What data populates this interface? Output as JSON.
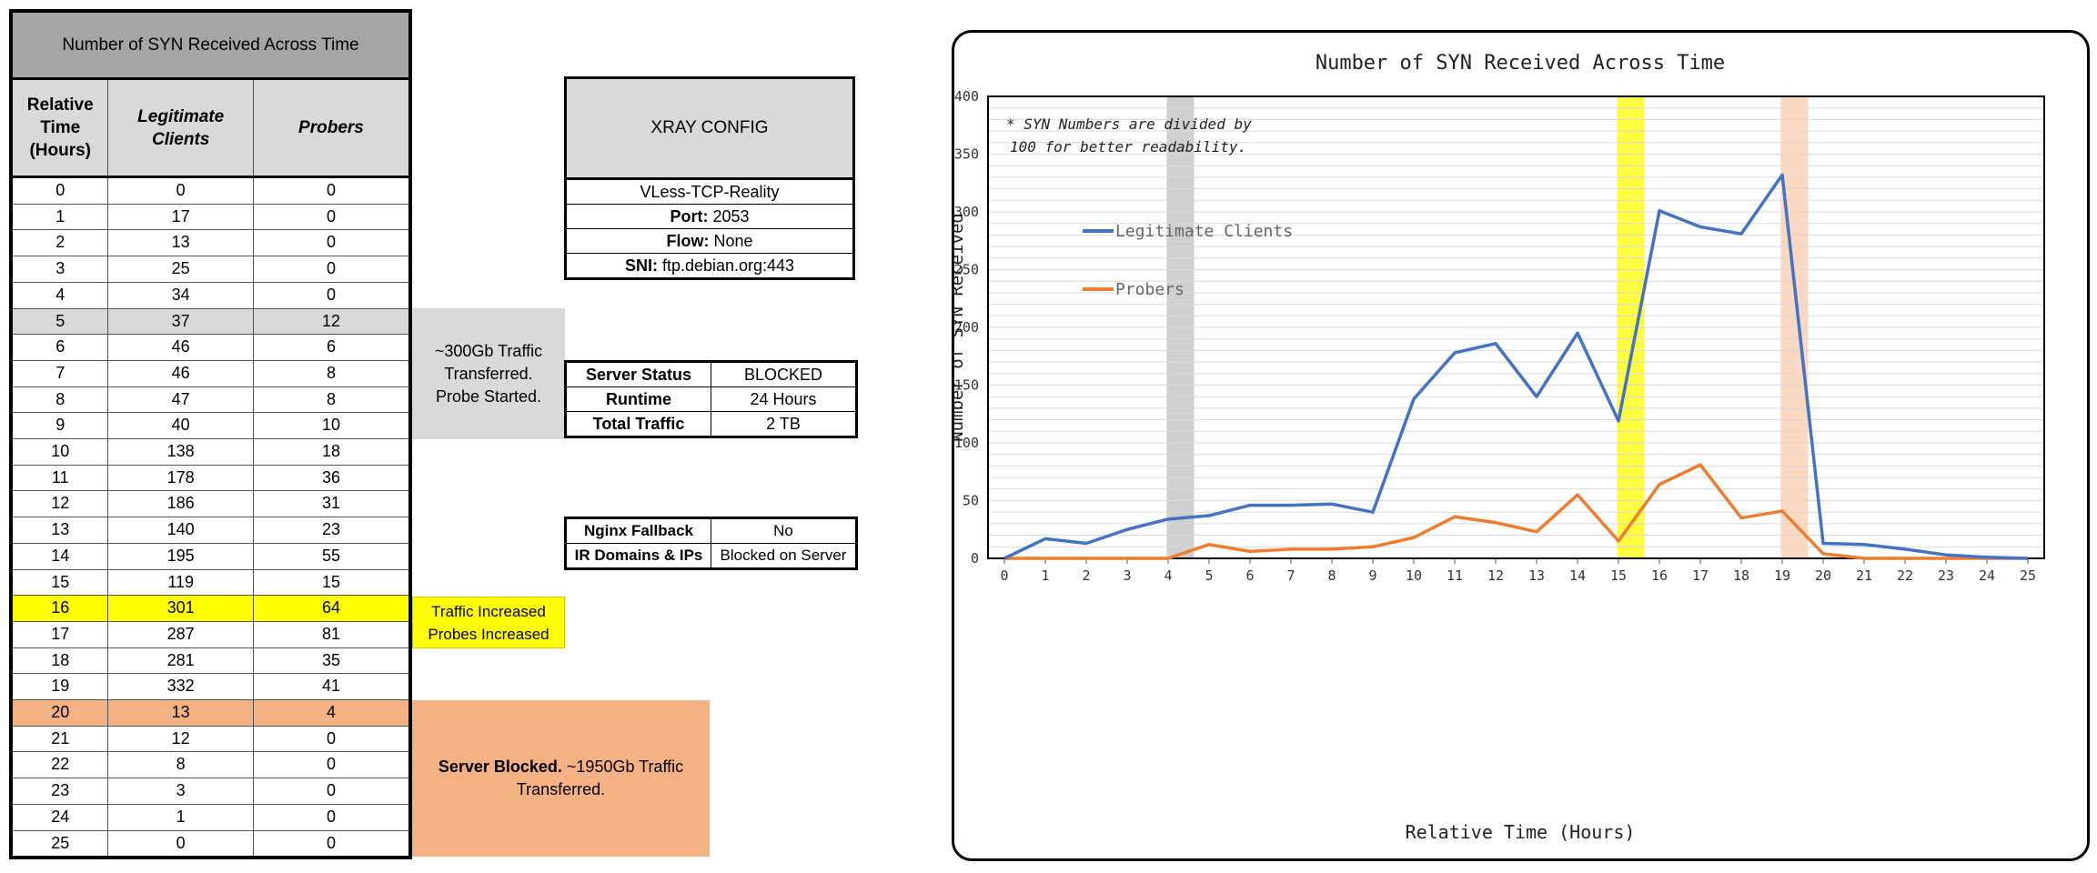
{
  "table": {
    "title": "Number of SYN Received Across Time",
    "headers": [
      "Relative Time (Hours)",
      "Legitimate Clients",
      "Probers"
    ],
    "rows": [
      [
        "0",
        "0",
        "0"
      ],
      [
        "1",
        "17",
        "0"
      ],
      [
        "2",
        "13",
        "0"
      ],
      [
        "3",
        "25",
        "0"
      ],
      [
        "4",
        "34",
        "0"
      ],
      [
        "5",
        "37",
        "12"
      ],
      [
        "6",
        "46",
        "6"
      ],
      [
        "7",
        "46",
        "8"
      ],
      [
        "8",
        "47",
        "8"
      ],
      [
        "9",
        "40",
        "10"
      ],
      [
        "10",
        "138",
        "18"
      ],
      [
        "11",
        "178",
        "36"
      ],
      [
        "12",
        "186",
        "31"
      ],
      [
        "13",
        "140",
        "23"
      ],
      [
        "14",
        "195",
        "55"
      ],
      [
        "15",
        "119",
        "15"
      ],
      [
        "16",
        "301",
        "64"
      ],
      [
        "17",
        "287",
        "81"
      ],
      [
        "18",
        "281",
        "35"
      ],
      [
        "19",
        "332",
        "41"
      ],
      [
        "20",
        "13",
        "4"
      ],
      [
        "21",
        "12",
        "0"
      ],
      [
        "22",
        "8",
        "0"
      ],
      [
        "23",
        "3",
        "0"
      ],
      [
        "24",
        "1",
        "0"
      ],
      [
        "25",
        "0",
        "0"
      ]
    ],
    "highlight_colors": {
      "grey": "#d9d9d9",
      "yellow": "#ffff00",
      "orange": "#f4b183"
    }
  },
  "notes": {
    "probe_started": "~300Gb Traffic Transferred. Probe Started.",
    "traffic_increased": "Traffic Increased Probes Increased",
    "server_blocked_bold": "Server Blocked.",
    "server_blocked_rest": " ~1950Gb Traffic Transferred."
  },
  "xray_config": {
    "title": "XRAY CONFIG",
    "protocol": "VLess-TCP-Reality",
    "port_label": "Port:",
    "port_value": " 2053",
    "flow_label": "Flow:",
    "flow_value": " None",
    "sni_label": "SNI:",
    "sni_value": " ftp.debian.org:443"
  },
  "server_info": {
    "rows": [
      {
        "label": "Server Status",
        "value": "BLOCKED"
      },
      {
        "label": "Runtime",
        "value": "24 Hours"
      },
      {
        "label": "Total Traffic",
        "value": "2 TB"
      }
    ]
  },
  "fallback_info": {
    "rows": [
      {
        "label": "Nginx Fallback",
        "value": "No"
      },
      {
        "label": "IR Domains & IPs",
        "value": "Blocked on Server"
      }
    ]
  },
  "chart_data": {
    "type": "line",
    "title": "Number of SYN Received Across Time",
    "xlabel": "Relative Time (Hours)",
    "ylabel": "Number of SYN Received",
    "annotation": "* SYN Numbers are divided by 100 for better readability.",
    "x": [
      0,
      1,
      2,
      3,
      4,
      5,
      6,
      7,
      8,
      9,
      10,
      11,
      12,
      13,
      14,
      15,
      16,
      17,
      18,
      19,
      20,
      21,
      22,
      23,
      24,
      25
    ],
    "series": [
      {
        "name": "Legitimate Clients",
        "color": "#4472c4",
        "values": [
          0,
          17,
          13,
          25,
          34,
          37,
          46,
          46,
          47,
          40,
          138,
          178,
          186,
          140,
          195,
          119,
          301,
          287,
          281,
          332,
          13,
          12,
          8,
          3,
          1,
          0
        ]
      },
      {
        "name": "Probers",
        "color": "#ed7d31",
        "values": [
          0,
          0,
          0,
          0,
          0,
          12,
          6,
          8,
          8,
          10,
          18,
          36,
          31,
          23,
          55,
          15,
          64,
          81,
          35,
          41,
          4,
          0,
          0,
          0,
          0,
          0
        ]
      }
    ],
    "xlim": [
      0,
      25
    ],
    "ylim": [
      0,
      400
    ],
    "yticks": [
      0,
      50,
      100,
      150,
      200,
      250,
      300,
      350,
      400
    ],
    "grid": true,
    "legend": "left",
    "highlight_bands": [
      {
        "x": 4.3,
        "color": "#bfbfbf"
      },
      {
        "x": 15.3,
        "color": "#ffff00"
      },
      {
        "x": 19.3,
        "color": "#f8cbad"
      }
    ]
  }
}
